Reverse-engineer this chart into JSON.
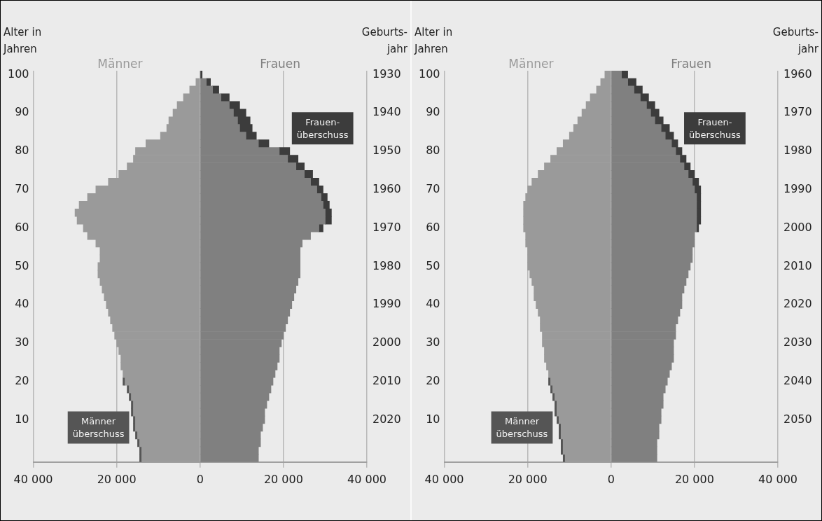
{
  "chart_data": [
    {
      "type": "bar",
      "orientation": "horizontal",
      "stacked": true,
      "ylabel": "Alter in Jahren",
      "y2label": "Geburts- jahr",
      "categories": [
        "100",
        null,
        null,
        null,
        null,
        "90",
        null,
        null,
        null,
        null,
        "80",
        null,
        null,
        null,
        null,
        "70",
        null,
        null,
        null,
        null,
        "60",
        null,
        null,
        null,
        null,
        "50",
        null,
        null,
        null,
        null,
        "40",
        null,
        null,
        null,
        null,
        "30",
        null,
        null,
        null,
        null,
        "20",
        null,
        null,
        null,
        null,
        "10",
        null,
        null,
        null,
        null,
        null
      ],
      "series": [
        {
          "name": "Männer",
          "color": "#9a9a9a",
          "values": [
            null,
            -1000,
            -2500,
            -4000,
            -5500,
            -6500,
            -7500,
            -8000,
            -9500,
            -13000,
            -15500,
            -16000,
            -17500,
            -19500,
            -22000,
            -25000,
            -27000,
            -29000,
            -30000,
            -29500,
            -28000,
            -27000,
            -25000,
            -24000,
            -24000,
            -24500,
            -24500,
            -24000,
            -23500,
            -23000,
            -22500,
            -22000,
            -21500,
            -21000,
            -20500,
            -20000,
            -19500,
            -19000,
            -19000,
            -18500,
            -18000,
            -17000,
            -16500,
            -16000,
            -16000,
            -15500,
            -15500,
            -15000,
            -14500,
            -14000,
            -14000
          ]
        },
        {
          "name": "Männer überschuss",
          "color": "#555555",
          "values": [
            null,
            null,
            null,
            null,
            null,
            null,
            null,
            null,
            null,
            null,
            null,
            null,
            null,
            null,
            null,
            null,
            null,
            null,
            null,
            null,
            null,
            null,
            null,
            null,
            null,
            null,
            null,
            null,
            null,
            null,
            null,
            null,
            null,
            null,
            null,
            null,
            null,
            null,
            null,
            null,
            -500,
            -500,
            -500,
            -500,
            -500,
            -500,
            -500,
            -500,
            -500,
            -500,
            -500
          ]
        },
        {
          "name": "Frauen",
          "color": "#808080",
          "values": [
            null,
            1500,
            3000,
            5000,
            7000,
            8000,
            9000,
            9500,
            11000,
            14000,
            19000,
            21000,
            23000,
            25000,
            26500,
            28000,
            29000,
            29500,
            30000,
            30000,
            28500,
            26500,
            24500,
            24000,
            24000,
            24000,
            24000,
            23500,
            23000,
            22500,
            22000,
            21500,
            21000,
            20500,
            20000,
            19500,
            19000,
            19000,
            18500,
            18000,
            17500,
            17000,
            16500,
            16000,
            15500,
            15500,
            15000,
            14500,
            14500,
            14000,
            14000
          ]
        },
        {
          "name": "Frauen- überschuss",
          "color": "#3c3c3c",
          "values": [
            500,
            1000,
            1500,
            2000,
            2500,
            3000,
            3000,
            3000,
            2500,
            2500,
            2500,
            2500,
            2000,
            2000,
            2000,
            1500,
            1500,
            1500,
            1500,
            1500,
            1000,
            null,
            null,
            null,
            null,
            null,
            null,
            null,
            null,
            null,
            null,
            null,
            null,
            null,
            null,
            null,
            null,
            null,
            null,
            null,
            null,
            null,
            null,
            null,
            null,
            null,
            null,
            null,
            null,
            null,
            null
          ]
        }
      ],
      "xlim": [
        -40000,
        40000
      ],
      "xticks": [
        {
          "value": -40000,
          "label": "40 000"
        },
        {
          "value": -20000,
          "label": "20 000"
        },
        0,
        {
          "value": 20000,
          "label": "20 000"
        },
        {
          "value": 40000,
          "label": "40 000"
        }
      ],
      "y2lim": [
        2031,
        1929
      ],
      "y2ticks": [
        1930,
        1940,
        1950,
        1960,
        1970,
        1980,
        1990,
        2000,
        2010,
        2020
      ],
      "grid": "x",
      "legend": false
    },
    {
      "type": "bar",
      "orientation": "horizontal",
      "stacked": true,
      "ylabel": "Alter in Jahren",
      "y2label": "Geburts- jahr",
      "categories": [
        "100",
        null,
        null,
        null,
        null,
        "90",
        null,
        null,
        null,
        null,
        "80",
        null,
        null,
        null,
        null,
        "70",
        null,
        null,
        null,
        null,
        "60",
        null,
        null,
        null,
        null,
        "50",
        null,
        null,
        null,
        null,
        "40",
        null,
        null,
        null,
        null,
        "30",
        null,
        null,
        null,
        null,
        "20",
        null,
        null,
        null,
        null,
        "10",
        null,
        null,
        null,
        null,
        null
      ],
      "series": [
        {
          "name": "Männer",
          "color": "#9a9a9a",
          "values": [
            -1500,
            -2500,
            -3500,
            -5000,
            -6000,
            -7000,
            -8000,
            -9000,
            -10000,
            -11500,
            -13000,
            -14500,
            -16000,
            -17500,
            -19000,
            -20000,
            -20500,
            -21000,
            -21000,
            -21000,
            -21000,
            -20500,
            -20500,
            -20000,
            -20000,
            -20000,
            -19500,
            -19000,
            -18500,
            -18500,
            -18000,
            -17500,
            -17000,
            -17000,
            -16500,
            -16500,
            -16000,
            -16000,
            -15500,
            -15000,
            -14500,
            -14000,
            -13500,
            -13000,
            -13000,
            -12500,
            -12000,
            -12000,
            -11500,
            -11500,
            -11000
          ]
        },
        {
          "name": "Männer überschuss",
          "color": "#555555",
          "values": [
            null,
            null,
            null,
            null,
            null,
            null,
            null,
            null,
            null,
            null,
            null,
            null,
            null,
            null,
            null,
            null,
            null,
            null,
            null,
            null,
            null,
            null,
            null,
            null,
            null,
            null,
            null,
            null,
            null,
            null,
            null,
            null,
            null,
            null,
            null,
            null,
            null,
            null,
            null,
            null,
            -500,
            -500,
            -500,
            -500,
            -500,
            -500,
            -500,
            -500,
            -500,
            -500,
            -500
          ]
        },
        {
          "name": "Frauen",
          "color": "#808080",
          "values": [
            2500,
            4000,
            5500,
            7000,
            8500,
            9500,
            10500,
            12000,
            13000,
            14500,
            15500,
            16500,
            17500,
            18500,
            19500,
            20000,
            20500,
            20500,
            20500,
            20500,
            20500,
            20000,
            20000,
            19500,
            19500,
            19000,
            18500,
            18000,
            17500,
            17000,
            17000,
            16500,
            16000,
            15500,
            15500,
            15000,
            15000,
            15000,
            14500,
            14000,
            13500,
            13000,
            12500,
            12500,
            12000,
            12000,
            11500,
            11500,
            11000,
            11000,
            11000
          ]
        },
        {
          "name": "Frauen- überschuss",
          "color": "#3c3c3c",
          "values": [
            1500,
            2000,
            2000,
            2000,
            2000,
            2000,
            2000,
            2000,
            2000,
            1500,
            1500,
            1500,
            1500,
            1500,
            1500,
            1500,
            1000,
            1000,
            1000,
            1000,
            500,
            null,
            null,
            null,
            null,
            null,
            null,
            null,
            null,
            null,
            null,
            null,
            null,
            null,
            null,
            null,
            null,
            null,
            null,
            null,
            null,
            null,
            null,
            null,
            null,
            null,
            null,
            null,
            null,
            null,
            null
          ]
        }
      ],
      "xlim": [
        -40000,
        40000
      ],
      "xticks": [
        {
          "value": -40000,
          "label": "40 000"
        },
        {
          "value": -20000,
          "label": "20 000"
        },
        0,
        {
          "value": 20000,
          "label": "20 000"
        },
        {
          "value": 40000,
          "label": "40 000"
        }
      ],
      "y2lim": [
        2061,
        1959
      ],
      "y2ticks": [
        1960,
        1970,
        1980,
        1990,
        2000,
        2010,
        2020,
        2030,
        2040,
        2050
      ],
      "grid": "x",
      "legend": false
    }
  ]
}
